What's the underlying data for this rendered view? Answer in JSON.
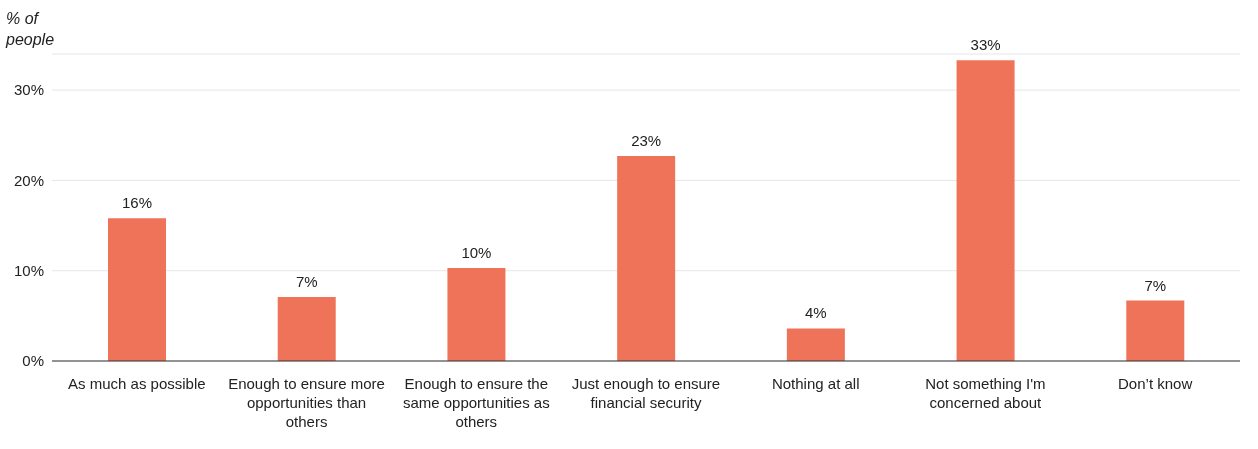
{
  "chart_data": {
    "type": "bar",
    "ylabel": "% of people",
    "categories": [
      "As much as possible",
      "Enough to ensure more opportunities than others",
      "Enough to ensure the same opportunities as others",
      "Just enough to ensure financial security",
      "Nothing at all",
      "Not something I'm concerned about",
      "Don’t know"
    ],
    "values": [
      15.8,
      7.1,
      10.3,
      22.7,
      3.6,
      33.3,
      6.7
    ],
    "value_labels": [
      "16%",
      "7%",
      "10%",
      "23%",
      "4%",
      "33%",
      "7%"
    ],
    "color": "#ef7358",
    "ylim": [
      0,
      34
    ],
    "yticks": [
      {
        "value": 0,
        "label": "0%"
      },
      {
        "value": 10,
        "label": "10%"
      },
      {
        "value": 20,
        "label": "20%"
      },
      {
        "value": 30,
        "label": "30%"
      }
    ],
    "grid": "y",
    "legend": false
  }
}
